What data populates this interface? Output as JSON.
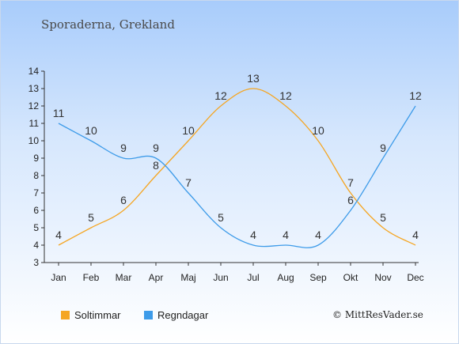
{
  "title": "Sporaderna, Grekland",
  "credit": "© MittResVader.se",
  "chart_data": {
    "type": "line",
    "title": "Sporaderna, Grekland",
    "xlabel": "",
    "ylabel": "",
    "categories": [
      "Jan",
      "Feb",
      "Mar",
      "Apr",
      "Maj",
      "Jun",
      "Jul",
      "Aug",
      "Sep",
      "Okt",
      "Nov",
      "Dec"
    ],
    "ylim": [
      3,
      14
    ],
    "yticks": [
      "3",
      "4",
      "5",
      "6",
      "7",
      "8",
      "9",
      "10",
      "11",
      "12",
      "13",
      "14"
    ],
    "grid": false,
    "legend_position": "bottom-left",
    "series": [
      {
        "name": "Soltimmar",
        "color": "#f5a623",
        "values": [
          4,
          5,
          6,
          8,
          10,
          12,
          13,
          12,
          10,
          7,
          5,
          4
        ]
      },
      {
        "name": "Regndagar",
        "color": "#3d9be9",
        "values": [
          11,
          10,
          9,
          9,
          7,
          5,
          4,
          4,
          4,
          6,
          9,
          12
        ]
      }
    ]
  }
}
